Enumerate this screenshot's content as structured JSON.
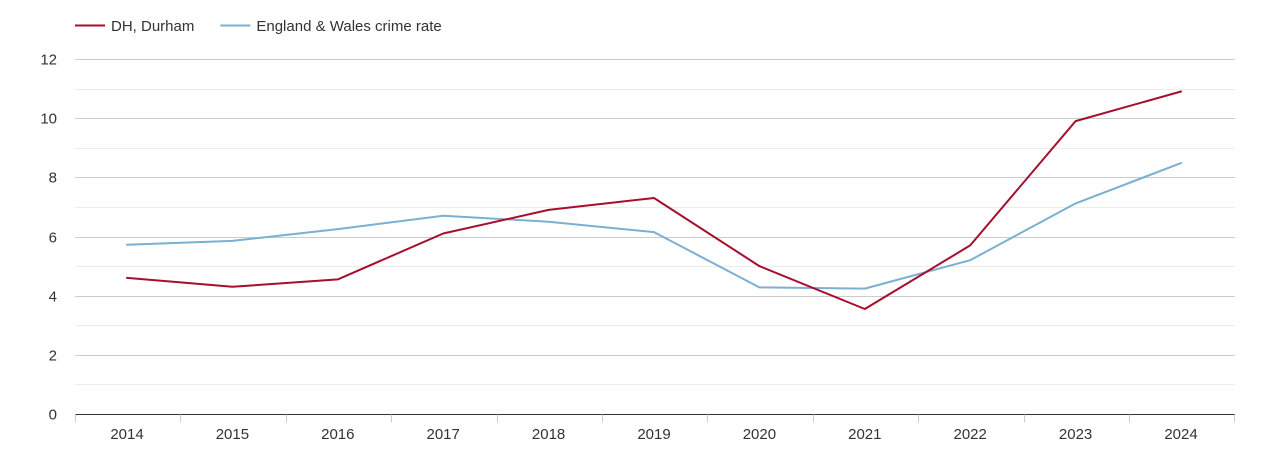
{
  "chart_data": {
    "type": "line",
    "title": "",
    "xlabel": "",
    "ylabel": "",
    "categories": [
      "2014",
      "2015",
      "2016",
      "2017",
      "2018",
      "2019",
      "2020",
      "2021",
      "2022",
      "2023",
      "2024"
    ],
    "ylim": [
      0,
      12
    ],
    "yticks": [
      0,
      2,
      4,
      6,
      8,
      10,
      12
    ],
    "grid": true,
    "legend_position": "top-left",
    "series": [
      {
        "name": "DH, Durham",
        "color": "#a50f2d",
        "values": [
          4.6,
          4.3,
          4.55,
          6.1,
          6.9,
          7.3,
          5.0,
          3.55,
          5.7,
          9.9,
          10.9
        ]
      },
      {
        "name": "England & Wales crime rate",
        "color": "#7ab0d2",
        "values": [
          5.72,
          5.85,
          6.25,
          6.7,
          6.5,
          6.15,
          4.28,
          4.24,
          5.2,
          7.12,
          8.48
        ]
      }
    ]
  }
}
